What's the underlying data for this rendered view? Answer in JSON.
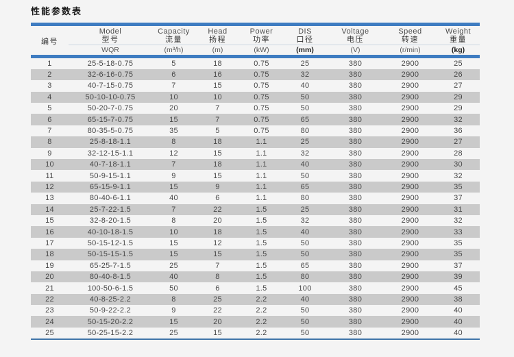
{
  "page": {
    "title": "性能参数表"
  },
  "colors": {
    "bar_blue": "#3e7cc1",
    "stripe_gray": "#cacaca",
    "bottom_line_blue": "#3f74a8",
    "background": "#f4f4f4"
  },
  "table": {
    "columns": [
      {
        "en": "",
        "zh": "编号",
        "unit": ""
      },
      {
        "en": "Model",
        "zh": "型号",
        "unit": "WQR"
      },
      {
        "en": "Capacity",
        "zh": "流量",
        "unit": "(m³/h)"
      },
      {
        "en": "Head",
        "zh": "扬程",
        "unit": "(m)"
      },
      {
        "en": "Power",
        "zh": "功率",
        "unit": "(kW)"
      },
      {
        "en": "DIS",
        "zh": "口径",
        "unit": "(mm)"
      },
      {
        "en": "Voltage",
        "zh": "电压",
        "unit": "(V)"
      },
      {
        "en": "Speed",
        "zh": "转速",
        "unit": "(r/min)"
      },
      {
        "en": "Weight",
        "zh": "重量",
        "unit": "(kg)"
      }
    ],
    "rows": [
      [
        "1",
        "25-5-18-0.75",
        "5",
        "18",
        "0.75",
        "25",
        "380",
        "2900",
        "25"
      ],
      [
        "2",
        "32-6-16-0.75",
        "6",
        "16",
        "0.75",
        "32",
        "380",
        "2900",
        "26"
      ],
      [
        "3",
        "40-7-15-0.75",
        "7",
        "15",
        "0.75",
        "40",
        "380",
        "2900",
        "27"
      ],
      [
        "4",
        "50-10-10-0.75",
        "10",
        "10",
        "0.75",
        "50",
        "380",
        "2900",
        "29"
      ],
      [
        "5",
        "50-20-7-0.75",
        "20",
        "7",
        "0.75",
        "50",
        "380",
        "2900",
        "29"
      ],
      [
        "6",
        "65-15-7-0.75",
        "15",
        "7",
        "0.75",
        "65",
        "380",
        "2900",
        "32"
      ],
      [
        "7",
        "80-35-5-0.75",
        "35",
        "5",
        "0.75",
        "80",
        "380",
        "2900",
        "36"
      ],
      [
        "8",
        "25-8-18-1.1",
        "8",
        "18",
        "1.1",
        "25",
        "380",
        "2900",
        "27"
      ],
      [
        "9",
        "32-12-15-1.1",
        "12",
        "15",
        "1.1",
        "32",
        "380",
        "2900",
        "28"
      ],
      [
        "10",
        "40-7-18-1.1",
        "7",
        "18",
        "1.1",
        "40",
        "380",
        "2900",
        "30"
      ],
      [
        "11",
        "50-9-15-1.1",
        "9",
        "15",
        "1.1",
        "50",
        "380",
        "2900",
        "32"
      ],
      [
        "12",
        "65-15-9-1.1",
        "15",
        "9",
        "1.1",
        "65",
        "380",
        "2900",
        "35"
      ],
      [
        "13",
        "80-40-6-1.1",
        "40",
        "6",
        "1.1",
        "80",
        "380",
        "2900",
        "37"
      ],
      [
        "14",
        "25-7-22-1.5",
        "7",
        "22",
        "1.5",
        "25",
        "380",
        "2900",
        "31"
      ],
      [
        "15",
        "32-8-20-1.5",
        "8",
        "20",
        "1.5",
        "32",
        "380",
        "2900",
        "32"
      ],
      [
        "16",
        "40-10-18-1.5",
        "10",
        "18",
        "1.5",
        "40",
        "380",
        "2900",
        "33"
      ],
      [
        "17",
        "50-15-12-1.5",
        "15",
        "12",
        "1.5",
        "50",
        "380",
        "2900",
        "35"
      ],
      [
        "18",
        "50-15-15-1.5",
        "15",
        "15",
        "1.5",
        "50",
        "380",
        "2900",
        "35"
      ],
      [
        "19",
        "65-25-7-1.5",
        "25",
        "7",
        "1.5",
        "65",
        "380",
        "2900",
        "37"
      ],
      [
        "20",
        "80-40-8-1.5",
        "40",
        "8",
        "1.5",
        "80",
        "380",
        "2900",
        "39"
      ],
      [
        "21",
        "100-50-6-1.5",
        "50",
        "6",
        "1.5",
        "100",
        "380",
        "2900",
        "45"
      ],
      [
        "22",
        "40-8-25-2.2",
        "8",
        "25",
        "2.2",
        "40",
        "380",
        "2900",
        "38"
      ],
      [
        "23",
        "50-9-22-2.2",
        "9",
        "22",
        "2.2",
        "50",
        "380",
        "2900",
        "40"
      ],
      [
        "24",
        "50-15-20-2.2",
        "15",
        "20",
        "2.2",
        "50",
        "380",
        "2900",
        "40"
      ],
      [
        "25",
        "50-25-15-2.2",
        "25",
        "15",
        "2.2",
        "50",
        "380",
        "2900",
        "40"
      ]
    ]
  }
}
